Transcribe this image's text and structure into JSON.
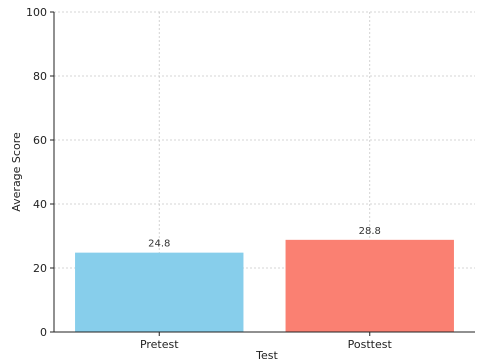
{
  "chart_data": {
    "type": "bar",
    "title": "",
    "xlabel": "Test",
    "ylabel": "Average Score",
    "categories": [
      "Pretest",
      "Posttest"
    ],
    "values": [
      24.8,
      28.8
    ],
    "data_labels": [
      "24.8",
      "28.8"
    ],
    "ylim": [
      0,
      100
    ],
    "yticks": [
      0,
      20,
      40,
      60,
      80,
      100
    ],
    "colors": [
      "#87CEEB",
      "#FA8072"
    ],
    "grid": true,
    "legend": false
  }
}
